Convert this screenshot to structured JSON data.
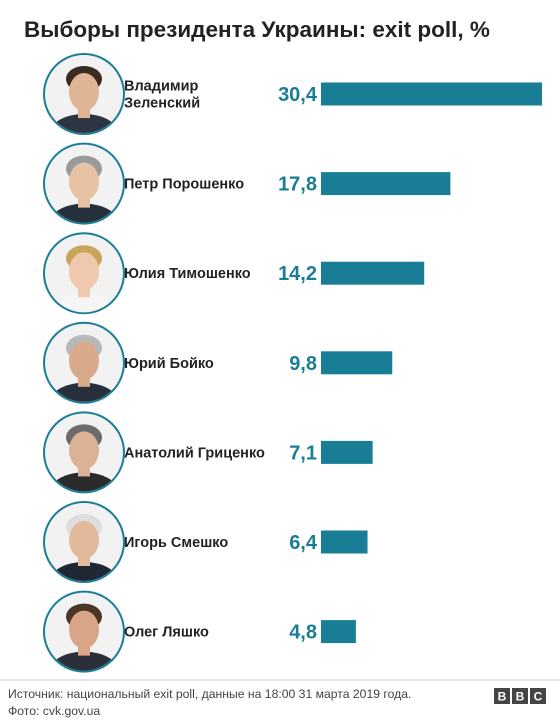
{
  "chart_data": {
    "type": "bar",
    "title": "Выборы президента Украины: exit poll, %",
    "orientation": "horizontal",
    "categories": [
      "Владимир Зеленский",
      "Петр Порошенко",
      "Юлия Тимошенко",
      "Юрий Бойко",
      "Анатолий Гриценко",
      "Игорь Смешко",
      "Олег Ляшко"
    ],
    "values": [
      30.4,
      17.8,
      14.2,
      9.8,
      7.1,
      6.4,
      4.8
    ],
    "value_labels": [
      "30,4",
      "17,8",
      "14,2",
      "9,8",
      "7,1",
      "6,4",
      "4,8"
    ],
    "candidate_name_lines": [
      [
        "Владимир",
        "Зеленский"
      ],
      [
        "Петр Порошенко"
      ],
      [
        "Юлия Тимошенко"
      ],
      [
        "Юрий Бойко"
      ],
      [
        "Анатолий Гриценко"
      ],
      [
        "Игорь Смешко"
      ],
      [
        "Олег Ляшко"
      ]
    ],
    "xlim": [
      0,
      30.4
    ],
    "grid": false,
    "bar_color": "#1a7d96",
    "label_color": "#1a7d96"
  },
  "footer": {
    "source": "Источник: национальный exit poll, данные на 18:00 31 марта 2019 года.",
    "photo": "Фото: cvk.gov.ua"
  },
  "branding": {
    "logo_letters": [
      "B",
      "B",
      "C"
    ]
  },
  "colors": {
    "portrait_ring": "#1a7d96",
    "portrait_background": "#f2f2f2",
    "text": "#222222",
    "footer_text": "#444444",
    "logo_background": "#444444"
  }
}
